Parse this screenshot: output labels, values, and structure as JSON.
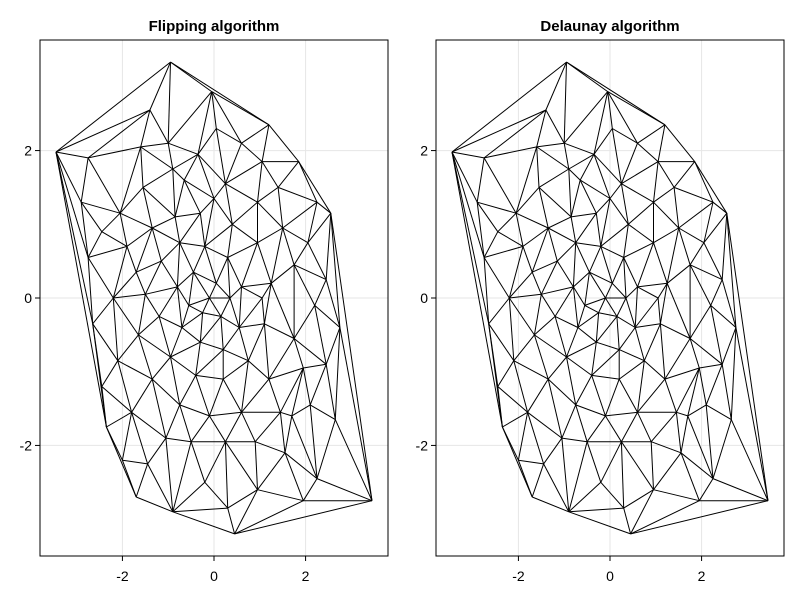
{
  "chart_data": [
    {
      "type": "triangulation",
      "title": "Flipping algorithm",
      "xlim": [
        -3.8,
        3.8
      ],
      "ylim": [
        -3.5,
        3.5
      ],
      "xticks": [
        -2,
        0,
        2
      ],
      "yticks": [
        -2,
        0,
        2
      ],
      "xtick_labels": [
        "-2",
        "0",
        "2"
      ],
      "ytick_labels": [
        "-2",
        "0",
        "2"
      ],
      "grid": true,
      "edge_color": "#000000"
    },
    {
      "type": "triangulation",
      "title": "Delaunay algorithm",
      "xlim": [
        -3.8,
        3.8
      ],
      "ylim": [
        -3.5,
        3.5
      ],
      "xticks": [
        -2,
        0,
        2
      ],
      "yticks": [
        -2,
        0,
        2
      ],
      "xtick_labels": [
        "-2",
        "0",
        "2"
      ],
      "ytick_labels": [
        "-2",
        "0",
        "2"
      ],
      "grid": true,
      "edge_color": "#000000"
    }
  ],
  "points": [
    [
      -3.45,
      1.98
    ],
    [
      -2.75,
      1.9
    ],
    [
      -1.4,
      2.55
    ],
    [
      -0.95,
      3.2
    ],
    [
      -0.05,
      2.8
    ],
    [
      1.2,
      2.35
    ],
    [
      1.85,
      1.85
    ],
    [
      2.55,
      1.15
    ],
    [
      2.75,
      -0.4
    ],
    [
      3.45,
      -2.75
    ],
    [
      2.25,
      -2.45
    ],
    [
      0.45,
      -3.2
    ],
    [
      -1.7,
      -2.7
    ],
    [
      -2.35,
      -1.75
    ],
    [
      -2.45,
      -1.2
    ],
    [
      -2.75,
      0.55
    ],
    [
      -2.05,
      1.15
    ],
    [
      -1.0,
      2.1
    ],
    [
      0.6,
      2.1
    ],
    [
      1.4,
      1.5
    ],
    [
      2.05,
      0.75
    ],
    [
      2.2,
      -0.1
    ],
    [
      2.45,
      -0.9
    ],
    [
      2.1,
      -1.45
    ],
    [
      1.55,
      -2.1
    ],
    [
      0.95,
      -2.6
    ],
    [
      -0.2,
      -2.5
    ],
    [
      -1.45,
      -2.25
    ],
    [
      -1.8,
      -1.55
    ],
    [
      -2.1,
      -0.85
    ],
    [
      -2.2,
      0.0
    ],
    [
      -2.45,
      0.9
    ],
    [
      -1.55,
      1.5
    ],
    [
      -0.65,
      1.6
    ],
    [
      0.25,
      1.55
    ],
    [
      0.95,
      1.3
    ],
    [
      1.5,
      0.95
    ],
    [
      1.75,
      0.45
    ],
    [
      1.75,
      -0.55
    ],
    [
      1.2,
      -1.1
    ],
    [
      0.6,
      -1.55
    ],
    [
      -0.1,
      -1.6
    ],
    [
      -0.75,
      -1.45
    ],
    [
      -1.35,
      -1.1
    ],
    [
      -1.65,
      -0.5
    ],
    [
      -1.7,
      0.35
    ],
    [
      -1.35,
      0.95
    ],
    [
      -0.85,
      1.1
    ],
    [
      -0.3,
      1.15
    ],
    [
      0.4,
      1.0
    ],
    [
      0.95,
      0.75
    ],
    [
      1.25,
      0.2
    ],
    [
      1.1,
      -0.35
    ],
    [
      0.75,
      -0.85
    ],
    [
      0.2,
      -1.1
    ],
    [
      -0.4,
      -1.05
    ],
    [
      -0.95,
      -0.8
    ],
    [
      -1.2,
      -0.25
    ],
    [
      -1.15,
      0.5
    ],
    [
      -0.75,
      0.75
    ],
    [
      -0.2,
      0.7
    ],
    [
      0.3,
      0.55
    ],
    [
      0.6,
      0.15
    ],
    [
      0.55,
      -0.4
    ],
    [
      0.2,
      -0.7
    ],
    [
      -0.3,
      -0.6
    ],
    [
      -0.7,
      -0.4
    ],
    [
      -0.8,
      0.15
    ],
    [
      -0.45,
      0.35
    ],
    [
      0.05,
      0.2
    ],
    [
      0.15,
      -0.25
    ],
    [
      -0.25,
      -0.2
    ],
    [
      -0.55,
      -0.1
    ],
    [
      -0.1,
      0.0
    ],
    [
      0.35,
      0.0
    ],
    [
      -0.9,
      1.75
    ],
    [
      0.05,
      2.3
    ],
    [
      1.05,
      1.85
    ],
    [
      2.25,
      1.3
    ],
    [
      2.45,
      0.25
    ],
    [
      2.65,
      -1.65
    ],
    [
      1.95,
      -2.75
    ],
    [
      0.3,
      -2.85
    ],
    [
      -0.9,
      -2.9
    ],
    [
      -2.0,
      -2.2
    ],
    [
      -2.65,
      -0.35
    ],
    [
      -2.9,
      1.3
    ],
    [
      -1.6,
      2.05
    ],
    [
      -0.35,
      1.95
    ],
    [
      1.7,
      -1.6
    ],
    [
      -1.05,
      -1.9
    ],
    [
      -0.5,
      -1.95
    ],
    [
      0.25,
      -1.95
    ],
    [
      0.9,
      -1.95
    ],
    [
      1.45,
      -1.55
    ],
    [
      -1.9,
      0.7
    ],
    [
      1.95,
      -0.95
    ],
    [
      1.05,
      0.0
    ],
    [
      -1.5,
      0.05
    ],
    [
      0.0,
      1.35
    ]
  ]
}
